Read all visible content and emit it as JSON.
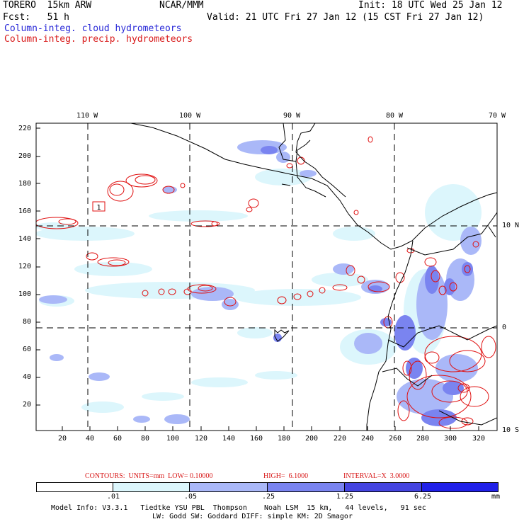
{
  "header": {
    "model": "TORERO  15km ARW",
    "org": "NCAR/MMM",
    "init": "Init: 18 UTC Wed 25 Jan 12",
    "fcst": "Fcst:   51 h",
    "valid": "Valid: 21 UTC Fri 27 Jan 12 (15 CST Fri 27 Jan 12)"
  },
  "legend": {
    "cloud": "Column-integ. cloud hydrometeors",
    "precip": "Column-integ. precip. hydrometeors"
  },
  "axes": {
    "lon_top": [
      "110 W",
      "100 W",
      "90 W",
      "80 W",
      "70 W"
    ],
    "lat_right": [
      "10 N",
      "0",
      "10 S"
    ],
    "y_left": [
      "220",
      "200",
      "180",
      "160",
      "140",
      "120",
      "100",
      "80",
      "60",
      "40",
      "20"
    ],
    "x_bottom": [
      "20",
      "40",
      "60",
      "80",
      "100",
      "120",
      "140",
      "160",
      "180",
      "200",
      "220",
      "240",
      "260",
      "280",
      "300",
      "320"
    ]
  },
  "map": {
    "contour_label": "1",
    "colors": {
      "shade1": "#dcf6fc",
      "shade2": "#aab8f8",
      "shade3": "#7a84f0",
      "shade4": "#4444e0",
      "contour": "#e01010"
    }
  },
  "contour_info": {
    "contours": "CONTOURS:  UNITS=mm  LOW= 0.10000",
    "high": "HIGH=  6.1000",
    "interval": "INTERVAL=X  3.0000"
  },
  "colorbar": {
    "labels": [
      ".01",
      ".05",
      ".25",
      "1.25",
      "6.25"
    ],
    "units": "mm",
    "colors": [
      "#ffffff",
      "#dcf6fc",
      "#aab8f8",
      "#7a84f0",
      "#4444e0",
      "#2020e8"
    ]
  },
  "model_info": {
    "line1": "Model Info: V3.3.1   Tiedtke YSU PBL  Thompson    Noah LSM  15 km,   44 levels,   91 sec",
    "line2": "LW: Godd SW: Goddard DIFF: simple KM: 2D Smagor"
  }
}
